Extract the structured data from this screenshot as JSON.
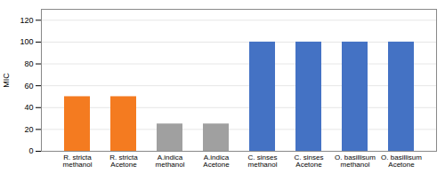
{
  "chart_data": {
    "type": "bar",
    "categories": [
      "R. stricta\nmethanol",
      "R. stricta\nAcetone",
      "A.indica\nmethanol",
      "A.indica\nAcetone",
      "C. sinses\nmethanol",
      "C. sinses\nAcetone",
      "O. basillisum\nmethanol",
      "O. basillisum\nAcetone"
    ],
    "values": [
      50,
      50,
      25,
      25,
      100,
      100,
      100,
      100
    ],
    "colors": [
      "#F47B20",
      "#F47B20",
      "#A0A0A0",
      "#A0A0A0",
      "#4472C4",
      "#4472C4",
      "#4472C4",
      "#4472C4"
    ],
    "ylabel": "MIC",
    "ylim": [
      0,
      130
    ],
    "yticks": [
      0,
      20,
      40,
      60,
      80,
      100,
      120
    ],
    "grid": true
  }
}
